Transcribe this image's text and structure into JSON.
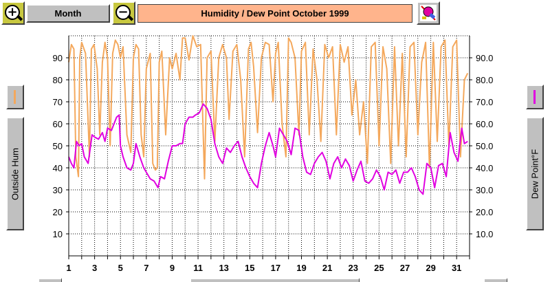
{
  "toolbar": {
    "zoom_in_icon": "zoom-in-magnifier",
    "zoom_out_icon": "zoom-out-magnifier",
    "period_label": "Month",
    "title": "Humidity  /  Dew Point   October 1999",
    "clear_icon": "paint-eraser"
  },
  "left_axis_label": "Outside Hum",
  "right_axis_label": "Dew Point°F",
  "colors": {
    "humidity": "#f4a85c",
    "dew_point": "#e000e0",
    "grid": "#000000",
    "background": "#ffffff",
    "button": "#c0c0c0",
    "title_background": "#ffb48c"
  },
  "chart_data": {
    "type": "line",
    "title": "Humidity  /  Dew Point   October 1999",
    "xlabel": "",
    "ylabel": "Outside Hum",
    "y2label": "Dew Point°F",
    "xlim": [
      1,
      32
    ],
    "ylim": [
      0,
      100
    ],
    "y2lim": [
      0,
      100
    ],
    "grid": true,
    "x_tick_labels": [
      "1",
      "3",
      "5",
      "7",
      "9",
      "11",
      "13",
      "15",
      "17",
      "19",
      "21",
      "23",
      "25",
      "27",
      "29",
      "31"
    ],
    "y_tick_labels": [
      "10",
      "20",
      "30",
      "40",
      "50",
      "60",
      "70",
      "80",
      "90"
    ],
    "y2_tick_labels": [
      "10.0",
      "20.0",
      "30.0",
      "40.0",
      "50.0",
      "60.0",
      "70.0",
      "80.0",
      "90.0"
    ],
    "series": [
      {
        "name": "Outside Hum",
        "axis": "left",
        "x": [
          1.0,
          1.2,
          1.4,
          1.55,
          1.75,
          1.85,
          2.0,
          2.3,
          2.6,
          2.75,
          2.95,
          3.2,
          3.4,
          3.6,
          3.8,
          4.0,
          4.2,
          4.4,
          4.6,
          4.8,
          5.0,
          5.2,
          5.5,
          5.8,
          6.0,
          6.2,
          6.4,
          6.6,
          6.8,
          7.0,
          7.3,
          7.5,
          7.7,
          7.85,
          8.0,
          8.2,
          8.5,
          8.8,
          9.0,
          9.3,
          9.6,
          9.8,
          10.0,
          10.3,
          10.6,
          10.9,
          11.2,
          11.5,
          11.7,
          12.0,
          12.3,
          12.6,
          12.9,
          13.2,
          13.4,
          13.7,
          14.0,
          14.3,
          14.6,
          14.9,
          15.1,
          15.3,
          15.6,
          15.9,
          16.2,
          16.5,
          16.8,
          17.0,
          17.2,
          17.5,
          17.8,
          18.0,
          18.2,
          18.5,
          18.8,
          19.0,
          19.3,
          19.6,
          19.9,
          20.2,
          20.5,
          20.8,
          21.1,
          21.4,
          21.7,
          22.0,
          22.3,
          22.6,
          22.9,
          23.2,
          23.5,
          23.8,
          24.1,
          24.4,
          24.7,
          25.0,
          25.3,
          25.6,
          25.9,
          26.2,
          26.5,
          26.8,
          27.1,
          27.4,
          27.7,
          28.0,
          28.3,
          28.6,
          28.9,
          29.2,
          29.5,
          29.8,
          30.1,
          30.4,
          30.7,
          31.0,
          31.3,
          31.6,
          31.85
        ],
        "y": [
          88,
          96,
          94,
          45,
          36,
          90,
          97,
          92,
          45,
          94,
          96,
          85,
          55,
          88,
          97,
          90,
          50,
          92,
          98,
          96,
          90,
          95,
          55,
          47,
          90,
          96,
          94,
          55,
          45,
          85,
          92,
          42,
          39,
          40,
          88,
          93,
          55,
          90,
          85,
          92,
          80,
          99,
          99,
          89,
          100,
          95,
          96,
          35,
          90,
          93,
          52,
          90,
          96,
          90,
          62,
          93,
          96,
          80,
          45,
          94,
          97,
          86,
          56,
          90,
          97,
          96,
          70,
          92,
          97,
          60,
          45,
          99,
          97,
          90,
          55,
          93,
          97,
          55,
          94,
          80,
          52,
          96,
          90,
          95,
          55,
          96,
          88,
          95,
          64,
          80,
          55,
          70,
          42,
          95,
          97,
          50,
          95,
          85,
          42,
          95,
          50,
          92,
          45,
          95,
          97,
          55,
          88,
          97,
          40,
          97,
          52,
          95,
          98,
          50,
          95,
          98,
          45,
          80,
          83
        ]
      },
      {
        "name": "Dew Point°F",
        "axis": "right",
        "x": [
          1.0,
          1.2,
          1.4,
          1.6,
          1.8,
          2.0,
          2.2,
          2.5,
          2.8,
          3.0,
          3.3,
          3.6,
          3.8,
          4.0,
          4.3,
          4.5,
          4.7,
          4.9,
          5.0,
          5.2,
          5.5,
          5.8,
          6.0,
          6.2,
          6.5,
          6.8,
          7.0,
          7.3,
          7.6,
          7.9,
          8.1,
          8.4,
          8.7,
          9.0,
          9.3,
          9.6,
          9.8,
          10.0,
          10.3,
          10.6,
          10.8,
          11.1,
          11.4,
          11.7,
          12.0,
          12.3,
          12.6,
          12.9,
          13.2,
          13.5,
          13.8,
          14.1,
          14.4,
          14.7,
          15.0,
          15.3,
          15.6,
          15.9,
          16.2,
          16.5,
          16.8,
          17.0,
          17.3,
          17.6,
          17.9,
          18.2,
          18.5,
          18.8,
          19.1,
          19.4,
          19.7,
          20.0,
          20.3,
          20.6,
          20.9,
          21.2,
          21.5,
          21.8,
          22.1,
          22.4,
          22.7,
          23.0,
          23.3,
          23.6,
          23.9,
          24.2,
          24.5,
          24.8,
          25.1,
          25.4,
          25.7,
          26.0,
          26.3,
          26.6,
          26.9,
          27.2,
          27.5,
          27.8,
          28.1,
          28.4,
          28.7,
          29.0,
          29.3,
          29.6,
          29.9,
          30.2,
          30.5,
          30.8,
          31.1,
          31.4,
          31.6,
          31.85
        ],
        "y": [
          45,
          42,
          40,
          52,
          50,
          51,
          45,
          42,
          55,
          54,
          53,
          56,
          52,
          58,
          57,
          60,
          63,
          64,
          50,
          45,
          40,
          39,
          42,
          51,
          45,
          40,
          38,
          35,
          34,
          31,
          36,
          35,
          43,
          50,
          50,
          51,
          51,
          60,
          63,
          63,
          64,
          65,
          69,
          67,
          62,
          51,
          45,
          42,
          49,
          47,
          50,
          52,
          45,
          40,
          36,
          33,
          31,
          42,
          50,
          56,
          50,
          45,
          58,
          55,
          52,
          46,
          58,
          57,
          45,
          38,
          37,
          42,
          45,
          47,
          43,
          35,
          42,
          45,
          40,
          44,
          41,
          34,
          39,
          43,
          34,
          33,
          35,
          39,
          36,
          30,
          38,
          37,
          39,
          33,
          38,
          38,
          40,
          36,
          30,
          28,
          42,
          40,
          31,
          41,
          42,
          36,
          56,
          47,
          43,
          58,
          51,
          52
        ]
      }
    ]
  }
}
